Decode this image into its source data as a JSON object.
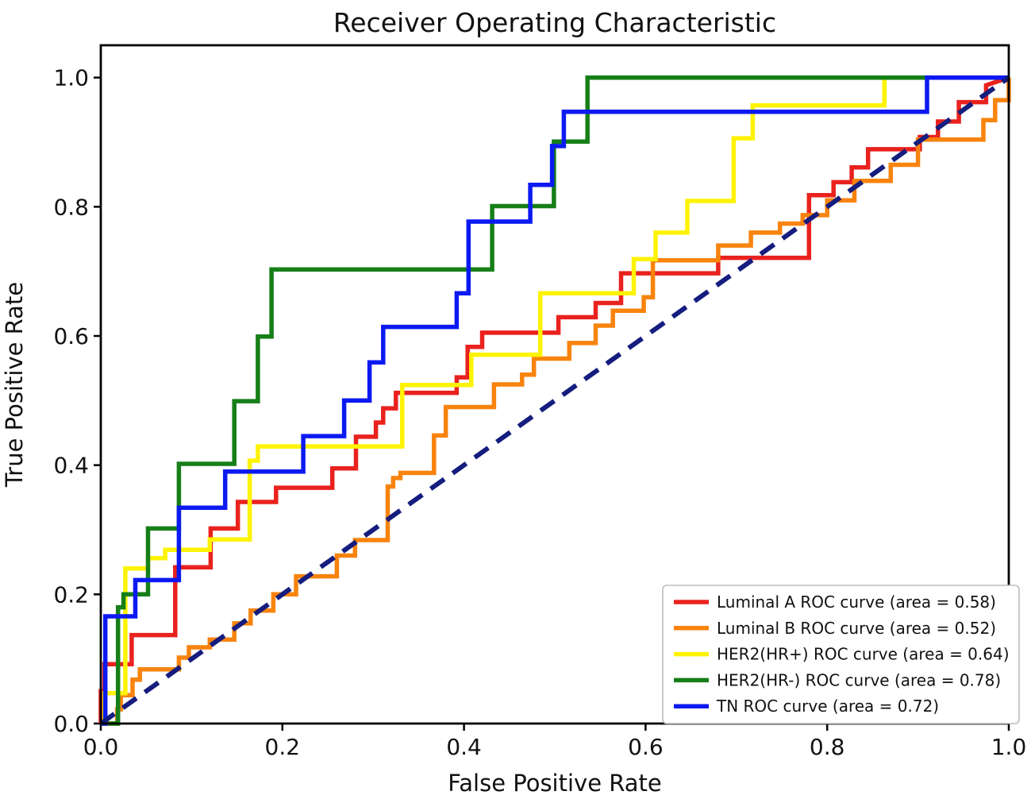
{
  "chart_data": {
    "type": "line",
    "subtype": "roc-step-curves",
    "title": "Receiver Operating Characteristic",
    "xlabel": "False Positive Rate",
    "ylabel": "True Positive Rate",
    "xlim": [
      0.0,
      1.0
    ],
    "ylim": [
      0.0,
      1.05
    ],
    "xticks": [
      0.0,
      0.2,
      0.4,
      0.6,
      0.8,
      1.0
    ],
    "yticks": [
      0.0,
      0.2,
      0.4,
      0.6,
      0.8,
      1.0
    ],
    "grid": false,
    "background": "#ffffff",
    "axis_color": "#000000",
    "text_color": "#111111",
    "legend_position": "lower right",
    "legend_border_color": "#bdbdbd",
    "legend_background": "#ffffff",
    "reference_line": {
      "name": "chance-diagonal",
      "style": "dashed",
      "color": "#151d7e",
      "points": [
        [
          0,
          0
        ],
        [
          1,
          1
        ]
      ]
    },
    "series": [
      {
        "name": "Luminal A",
        "label": "Luminal A ROC curve (area = 0.58)",
        "auc": 0.58,
        "color": "#e9221e",
        "points": [
          [
            0,
            0
          ],
          [
            0,
            0.05
          ],
          [
            0.004,
            0.05
          ],
          [
            0.004,
            0.092
          ],
          [
            0.034,
            0.092
          ],
          [
            0.034,
            0.137
          ],
          [
            0.082,
            0.137
          ],
          [
            0.082,
            0.242
          ],
          [
            0.121,
            0.242
          ],
          [
            0.121,
            0.302
          ],
          [
            0.151,
            0.302
          ],
          [
            0.151,
            0.343
          ],
          [
            0.193,
            0.343
          ],
          [
            0.193,
            0.365
          ],
          [
            0.255,
            0.365
          ],
          [
            0.255,
            0.395
          ],
          [
            0.281,
            0.395
          ],
          [
            0.281,
            0.444
          ],
          [
            0.303,
            0.444
          ],
          [
            0.303,
            0.466
          ],
          [
            0.311,
            0.466
          ],
          [
            0.311,
            0.488
          ],
          [
            0.325,
            0.488
          ],
          [
            0.325,
            0.512
          ],
          [
            0.392,
            0.512
          ],
          [
            0.392,
            0.536
          ],
          [
            0.404,
            0.536
          ],
          [
            0.404,
            0.583
          ],
          [
            0.42,
            0.583
          ],
          [
            0.42,
            0.605
          ],
          [
            0.504,
            0.605
          ],
          [
            0.504,
            0.629
          ],
          [
            0.545,
            0.629
          ],
          [
            0.545,
            0.651
          ],
          [
            0.573,
            0.651
          ],
          [
            0.573,
            0.697
          ],
          [
            0.68,
            0.697
          ],
          [
            0.68,
            0.721
          ],
          [
            0.78,
            0.721
          ],
          [
            0.78,
            0.818
          ],
          [
            0.807,
            0.818
          ],
          [
            0.807,
            0.838
          ],
          [
            0.827,
            0.838
          ],
          [
            0.827,
            0.861
          ],
          [
            0.845,
            0.861
          ],
          [
            0.845,
            0.889
          ],
          [
            0.902,
            0.889
          ],
          [
            0.902,
            0.908
          ],
          [
            0.922,
            0.908
          ],
          [
            0.922,
            0.932
          ],
          [
            0.945,
            0.932
          ],
          [
            0.945,
            0.962
          ],
          [
            0.975,
            0.962
          ],
          [
            0.975,
            0.988
          ],
          [
            1,
            1
          ]
        ]
      },
      {
        "name": "Luminal B",
        "label": "Luminal B ROC curve (area = 0.52)",
        "auc": 0.52,
        "color": "#f8830d",
        "points": [
          [
            0,
            0
          ],
          [
            0.018,
            0
          ],
          [
            0.018,
            0.022
          ],
          [
            0.022,
            0.022
          ],
          [
            0.022,
            0.044
          ],
          [
            0.035,
            0.044
          ],
          [
            0.035,
            0.068
          ],
          [
            0.043,
            0.068
          ],
          [
            0.043,
            0.084
          ],
          [
            0.086,
            0.084
          ],
          [
            0.086,
            0.102
          ],
          [
            0.097,
            0.102
          ],
          [
            0.097,
            0.118
          ],
          [
            0.12,
            0.118
          ],
          [
            0.12,
            0.13
          ],
          [
            0.147,
            0.13
          ],
          [
            0.147,
            0.155
          ],
          [
            0.165,
            0.155
          ],
          [
            0.165,
            0.175
          ],
          [
            0.19,
            0.175
          ],
          [
            0.19,
            0.2
          ],
          [
            0.215,
            0.2
          ],
          [
            0.215,
            0.228
          ],
          [
            0.26,
            0.228
          ],
          [
            0.26,
            0.26
          ],
          [
            0.28,
            0.26
          ],
          [
            0.28,
            0.284
          ],
          [
            0.316,
            0.284
          ],
          [
            0.316,
            0.367
          ],
          [
            0.322,
            0.367
          ],
          [
            0.322,
            0.38
          ],
          [
            0.33,
            0.38
          ],
          [
            0.33,
            0.388
          ],
          [
            0.367,
            0.388
          ],
          [
            0.367,
            0.446
          ],
          [
            0.38,
            0.446
          ],
          [
            0.38,
            0.49
          ],
          [
            0.433,
            0.49
          ],
          [
            0.433,
            0.525
          ],
          [
            0.464,
            0.525
          ],
          [
            0.464,
            0.54
          ],
          [
            0.477,
            0.54
          ],
          [
            0.477,
            0.565
          ],
          [
            0.516,
            0.565
          ],
          [
            0.516,
            0.589
          ],
          [
            0.545,
            0.589
          ],
          [
            0.545,
            0.616
          ],
          [
            0.564,
            0.616
          ],
          [
            0.564,
            0.639
          ],
          [
            0.598,
            0.639
          ],
          [
            0.598,
            0.66
          ],
          [
            0.608,
            0.66
          ],
          [
            0.608,
            0.717
          ],
          [
            0.68,
            0.717
          ],
          [
            0.68,
            0.74
          ],
          [
            0.716,
            0.74
          ],
          [
            0.716,
            0.76
          ],
          [
            0.748,
            0.76
          ],
          [
            0.748,
            0.774
          ],
          [
            0.773,
            0.774
          ],
          [
            0.773,
            0.787
          ],
          [
            0.8,
            0.787
          ],
          [
            0.8,
            0.81
          ],
          [
            0.83,
            0.81
          ],
          [
            0.83,
            0.84
          ],
          [
            0.87,
            0.84
          ],
          [
            0.87,
            0.865
          ],
          [
            0.9,
            0.865
          ],
          [
            0.9,
            0.904
          ],
          [
            0.972,
            0.904
          ],
          [
            0.972,
            0.934
          ],
          [
            0.985,
            0.934
          ],
          [
            0.985,
            0.965
          ],
          [
            1,
            0.965
          ],
          [
            1,
            1
          ]
        ]
      },
      {
        "name": "HER2(HR+)",
        "label": "HER2(HR+) ROC curve (area = 0.64)",
        "auc": 0.64,
        "color": "#fdf303",
        "points": [
          [
            0,
            0
          ],
          [
            0.004,
            0
          ],
          [
            0.004,
            0.047
          ],
          [
            0.027,
            0.047
          ],
          [
            0.027,
            0.24
          ],
          [
            0.052,
            0.24
          ],
          [
            0.052,
            0.256
          ],
          [
            0.071,
            0.256
          ],
          [
            0.071,
            0.269
          ],
          [
            0.12,
            0.269
          ],
          [
            0.12,
            0.285
          ],
          [
            0.164,
            0.285
          ],
          [
            0.164,
            0.407
          ],
          [
            0.173,
            0.407
          ],
          [
            0.173,
            0.429
          ],
          [
            0.332,
            0.429
          ],
          [
            0.332,
            0.524
          ],
          [
            0.408,
            0.524
          ],
          [
            0.408,
            0.571
          ],
          [
            0.484,
            0.571
          ],
          [
            0.484,
            0.666
          ],
          [
            0.587,
            0.666
          ],
          [
            0.587,
            0.719
          ],
          [
            0.611,
            0.719
          ],
          [
            0.611,
            0.76
          ],
          [
            0.646,
            0.76
          ],
          [
            0.646,
            0.809
          ],
          [
            0.697,
            0.809
          ],
          [
            0.697,
            0.906
          ],
          [
            0.718,
            0.906
          ],
          [
            0.718,
            0.957
          ],
          [
            0.863,
            0.957
          ],
          [
            0.863,
            1
          ],
          [
            1,
            1
          ]
        ]
      },
      {
        "name": "HER2(HR-)",
        "label": "HER2(HR-) ROC curve (area = 0.78)",
        "auc": 0.78,
        "color": "#167f18",
        "points": [
          [
            0,
            0
          ],
          [
            0.019,
            0
          ],
          [
            0.019,
            0.18
          ],
          [
            0.025,
            0.18
          ],
          [
            0.025,
            0.2
          ],
          [
            0.052,
            0.2
          ],
          [
            0.052,
            0.302
          ],
          [
            0.086,
            0.302
          ],
          [
            0.086,
            0.402
          ],
          [
            0.147,
            0.402
          ],
          [
            0.147,
            0.499
          ],
          [
            0.173,
            0.499
          ],
          [
            0.173,
            0.599
          ],
          [
            0.188,
            0.599
          ],
          [
            0.188,
            0.703
          ],
          [
            0.431,
            0.703
          ],
          [
            0.431,
            0.801
          ],
          [
            0.499,
            0.801
          ],
          [
            0.499,
            0.901
          ],
          [
            0.536,
            0.901
          ],
          [
            0.536,
            1
          ],
          [
            1,
            1
          ]
        ]
      },
      {
        "name": "TN",
        "label": "TN ROC curve (area = 0.72)",
        "auc": 0.72,
        "color": "#0c1af1",
        "points": [
          [
            0,
            0
          ],
          [
            0.005,
            0
          ],
          [
            0.005,
            0.166
          ],
          [
            0.038,
            0.166
          ],
          [
            0.038,
            0.222
          ],
          [
            0.086,
            0.222
          ],
          [
            0.086,
            0.334
          ],
          [
            0.137,
            0.334
          ],
          [
            0.137,
            0.39
          ],
          [
            0.223,
            0.39
          ],
          [
            0.223,
            0.445
          ],
          [
            0.268,
            0.445
          ],
          [
            0.268,
            0.5
          ],
          [
            0.296,
            0.5
          ],
          [
            0.296,
            0.559
          ],
          [
            0.311,
            0.559
          ],
          [
            0.311,
            0.614
          ],
          [
            0.392,
            0.614
          ],
          [
            0.392,
            0.666
          ],
          [
            0.405,
            0.666
          ],
          [
            0.405,
            0.777
          ],
          [
            0.473,
            0.777
          ],
          [
            0.473,
            0.834
          ],
          [
            0.497,
            0.834
          ],
          [
            0.497,
            0.894
          ],
          [
            0.51,
            0.894
          ],
          [
            0.51,
            0.947
          ],
          [
            0.91,
            0.947
          ],
          [
            0.91,
            1
          ],
          [
            1,
            1
          ]
        ]
      }
    ]
  }
}
